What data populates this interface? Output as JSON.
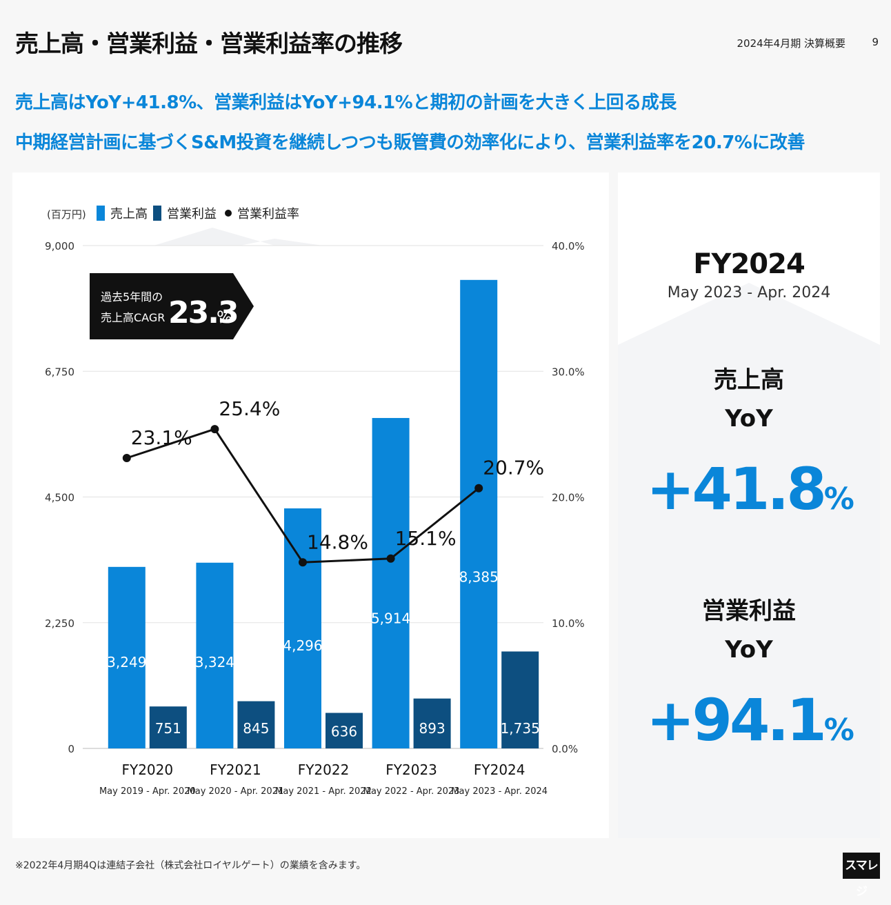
{
  "header": {
    "title": "売上高・営業利益・営業利益率の推移",
    "doc_label": "2024年4月期 決算概要",
    "page_number": "9"
  },
  "headlines": [
    "売上高はYoY+41.8%、営業利益はYoY+94.1%と期初の計画を大きく上回る成長",
    "中期経営計画に基づくS&M投資を継続しつつも販管費の効率化により、営業利益率を20.7%に改善"
  ],
  "chart_data": {
    "type": "bar",
    "unit_label": "(百万円)",
    "categories": [
      "FY2020",
      "FY2021",
      "FY2022",
      "FY2023",
      "FY2024"
    ],
    "category_periods": [
      "May 2019 - Apr. 2020",
      "May 2020 - Apr. 2021",
      "May 2021 - Apr. 2022",
      "May 2022 - Apr. 2023",
      "May 2023 - Apr. 2024"
    ],
    "series": [
      {
        "name": "売上高",
        "type": "bar",
        "axis": "left",
        "color": "#0a86d9",
        "values": [
          3249,
          3324,
          4296,
          5914,
          8385
        ],
        "labels": [
          "3,249",
          "3,324",
          "4,296",
          "5,914",
          "8,385"
        ]
      },
      {
        "name": "営業利益",
        "type": "bar",
        "axis": "left",
        "color": "#0d4f80",
        "values": [
          751,
          845,
          636,
          893,
          1735
        ],
        "labels": [
          "751",
          "845",
          "636",
          "893",
          "1,735"
        ]
      },
      {
        "name": "営業利益率",
        "type": "line",
        "axis": "right",
        "color": "#111111",
        "values": [
          23.1,
          25.4,
          14.8,
          15.1,
          20.7
        ],
        "labels": [
          "23.1%",
          "25.4%",
          "14.8%",
          "15.1%",
          "20.7%"
        ]
      }
    ],
    "y_left": {
      "ylim": [
        0,
        9000
      ],
      "ticks": [
        0,
        2250,
        4500,
        6750,
        9000
      ],
      "tick_labels": [
        "0",
        "2,250",
        "4,500",
        "6,750",
        "9,000"
      ]
    },
    "y_right": {
      "ylim": [
        0,
        40
      ],
      "ticks": [
        0,
        10,
        20,
        30,
        40
      ],
      "tick_labels": [
        "0.0%",
        "10.0%",
        "20.0%",
        "30.0%",
        "40.0%"
      ]
    },
    "grid": true,
    "legend": "top-left",
    "callout": {
      "line1": "過去5年間の",
      "line2": "売上高CAGR",
      "value": "23.3",
      "unit": "%"
    }
  },
  "summary": {
    "fiscal_year": "FY2024",
    "period": "May 2023 - Apr. 2024",
    "sales_label": "売上高",
    "sales_yoy_label": "YoY",
    "sales_yoy_value": "+41.8",
    "op_label": "営業利益",
    "op_yoy_label": "YoY",
    "op_yoy_value": "+94.1",
    "pct_unit": "%"
  },
  "footnote": "※2022年4月期4Qは連結子会社（株式会社ロイヤルゲート）の業績を含みます。",
  "logo_text": "スマレジ"
}
